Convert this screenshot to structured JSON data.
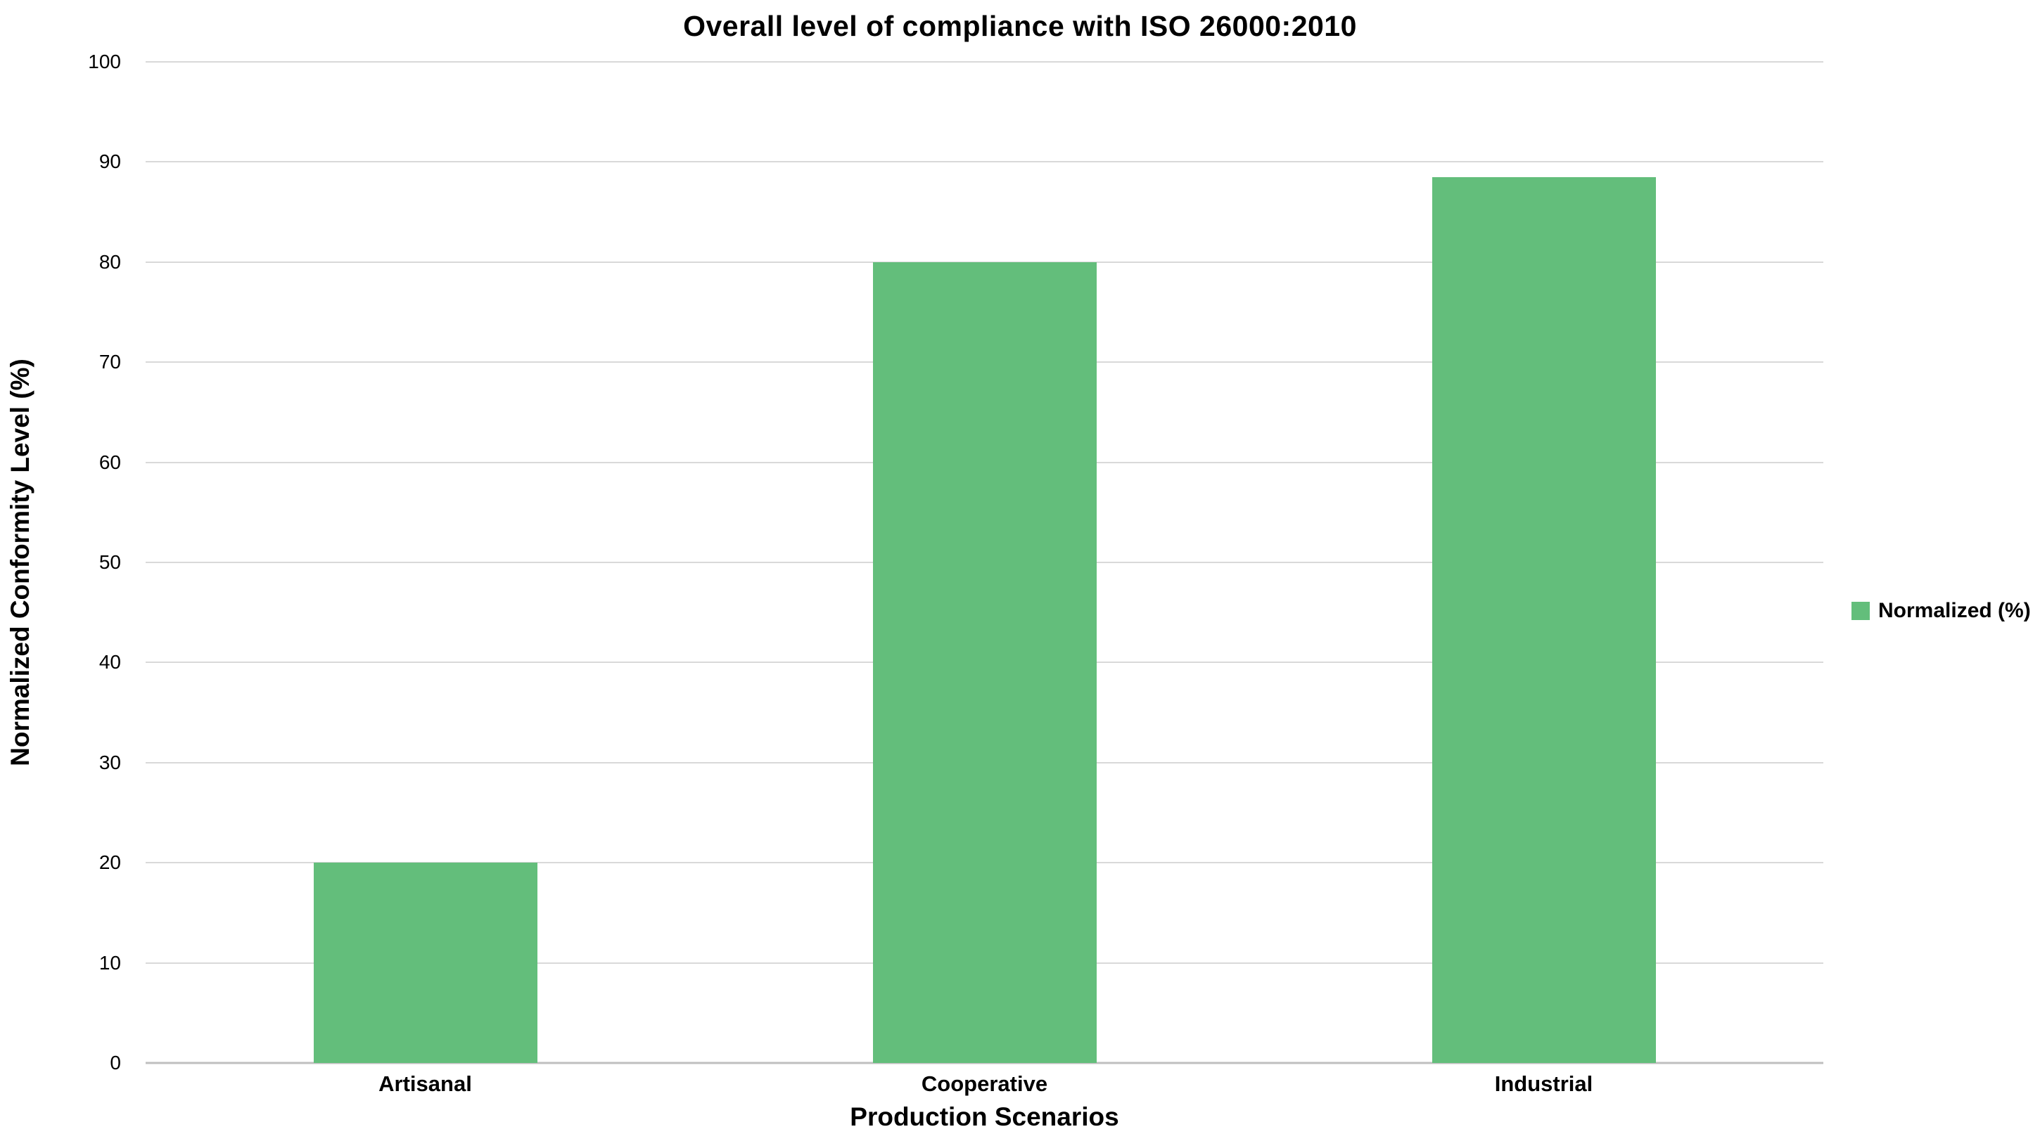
{
  "chart_data": {
    "type": "bar",
    "title": "Overall level of compliance with ISO 26000:2010",
    "xlabel": "Production Scenarios",
    "ylabel": "Normalized Conformity Level (%)",
    "categories": [
      "Artisanal",
      "Cooperative",
      "Industrial"
    ],
    "series": [
      {
        "name": "Normalized (%)",
        "values": [
          20,
          80,
          88.5
        ]
      }
    ],
    "ylim": [
      0,
      100
    ],
    "ytick_step": 10,
    "grid": true,
    "legend_position": "right",
    "bar_color": "#63be7b",
    "gridline_color": "#d9d9d9",
    "axis_line_color": "#bfbfbf",
    "background_color": "#ffffff",
    "text_color": "#000000"
  }
}
